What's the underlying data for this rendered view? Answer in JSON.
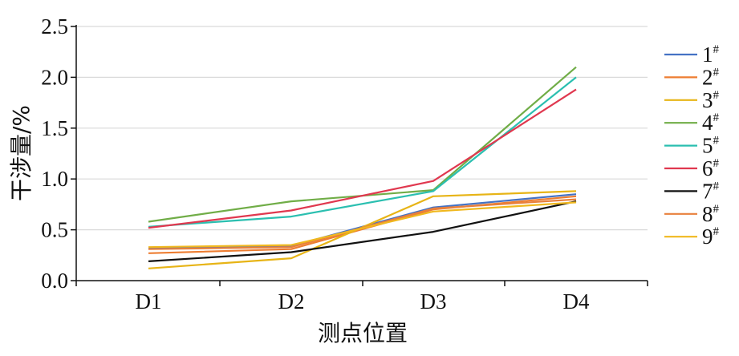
{
  "chart_data": {
    "type": "line",
    "title": "",
    "xlabel": "测点位置",
    "ylabel": "干涉量/%",
    "categories": [
      "D1",
      "D2",
      "D3",
      "D4"
    ],
    "ylim": [
      0,
      2.5
    ],
    "yticks": [
      "0.0",
      "0.5",
      "1.0",
      "1.5",
      "2.0",
      "2.5"
    ],
    "grid": "horizontal",
    "legend": "right",
    "legend_suffix": "#",
    "series": [
      {
        "name": "1",
        "color": "#4472c4",
        "values": [
          0.32,
          0.34,
          0.72,
          0.85
        ]
      },
      {
        "name": "2",
        "color": "#ed7d31",
        "values": [
          0.27,
          0.31,
          0.7,
          0.83
        ]
      },
      {
        "name": "3",
        "color": "#e7b416",
        "values": [
          0.12,
          0.22,
          0.83,
          0.88
        ]
      },
      {
        "name": "4",
        "color": "#70ad47",
        "values": [
          0.58,
          0.78,
          0.89,
          2.1
        ]
      },
      {
        "name": "5",
        "color": "#2bbfb0",
        "values": [
          0.53,
          0.63,
          0.88,
          2.0
        ]
      },
      {
        "name": "6",
        "color": "#e0384f",
        "values": [
          0.52,
          0.69,
          0.98,
          1.88
        ]
      },
      {
        "name": "7",
        "color": "#111111",
        "values": [
          0.19,
          0.28,
          0.48,
          0.78
        ]
      },
      {
        "name": "8",
        "color": "#e8803c",
        "values": [
          0.31,
          0.33,
          0.71,
          0.8
        ]
      },
      {
        "name": "9",
        "color": "#f0b81e",
        "values": [
          0.33,
          0.35,
          0.68,
          0.77
        ]
      }
    ]
  }
}
